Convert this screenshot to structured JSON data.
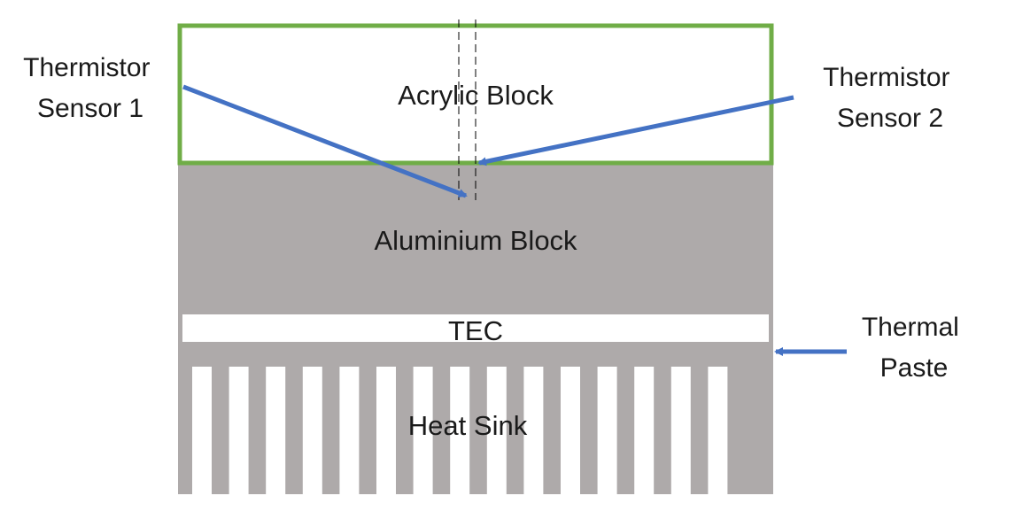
{
  "diagram": {
    "labels": {
      "thermistor_sensor_1": [
        "Thermistor",
        "Sensor 1"
      ],
      "thermistor_sensor_2": [
        "Thermistor",
        "Sensor 2"
      ],
      "thermal_paste": [
        "Thermal",
        "Paste"
      ],
      "acrylic_block": "Acrylic Block",
      "aluminium_block": "Aluminium Block",
      "tec": "TEC",
      "heat_sink": "Heat Sink"
    },
    "colors": {
      "acrylic_border": "#70ad47",
      "aluminium_fill": "#aeaaaa",
      "heat_sink_fill": "#aeaaaa",
      "arrow": "#4472c4",
      "tec_fill": "#ffffff",
      "background": "#ffffff"
    },
    "heat_sink_fin_count": 15
  }
}
